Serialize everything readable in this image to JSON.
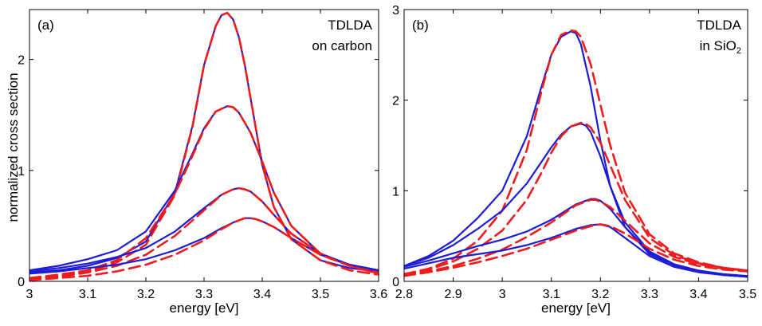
{
  "ylabel": "normalized cross section",
  "chart_data": [
    {
      "type": "line",
      "panel_label": "(a)",
      "annotation": [
        "TDLDA",
        "on carbon"
      ],
      "xlabel": "energy [eV]",
      "ylabel": "",
      "xlim": [
        3.0,
        3.6
      ],
      "ylim": [
        0,
        2.45
      ],
      "xticks": [
        "3",
        "3.1",
        "3.2",
        "3.3",
        "3.4",
        "3.5",
        "3.6"
      ],
      "yticks": [
        "0",
        "1",
        "2"
      ],
      "grid": false,
      "legend": "none",
      "series": [
        {
          "style": "solid",
          "color": "#1c1cd6",
          "x": [
            3.0,
            3.05,
            3.1,
            3.15,
            3.2,
            3.25,
            3.28,
            3.3,
            3.32,
            3.33,
            3.34,
            3.35,
            3.36,
            3.37,
            3.38,
            3.4,
            3.42,
            3.45,
            3.5,
            3.55,
            3.6
          ],
          "y": [
            0.08,
            0.1,
            0.14,
            0.21,
            0.36,
            0.8,
            1.4,
            1.95,
            2.3,
            2.4,
            2.42,
            2.36,
            2.2,
            1.95,
            1.65,
            1.05,
            0.67,
            0.38,
            0.19,
            0.12,
            0.09
          ]
        },
        {
          "style": "dashed",
          "color": "#ee1c1c",
          "x": [
            3.0,
            3.05,
            3.1,
            3.15,
            3.2,
            3.25,
            3.28,
            3.3,
            3.32,
            3.33,
            3.34,
            3.35,
            3.36,
            3.37,
            3.38,
            3.4,
            3.42,
            3.45,
            3.5,
            3.55,
            3.6
          ],
          "y": [
            0.02,
            0.05,
            0.09,
            0.17,
            0.33,
            0.78,
            1.39,
            1.95,
            2.3,
            2.4,
            2.42,
            2.36,
            2.2,
            1.95,
            1.65,
            1.05,
            0.67,
            0.38,
            0.19,
            0.1,
            0.06
          ]
        },
        {
          "style": "solid",
          "color": "#1c1cd6",
          "x": [
            3.0,
            3.05,
            3.1,
            3.15,
            3.2,
            3.25,
            3.28,
            3.3,
            3.32,
            3.34,
            3.35,
            3.36,
            3.38,
            3.4,
            3.42,
            3.45,
            3.5,
            3.55,
            3.6
          ],
          "y": [
            0.1,
            0.14,
            0.2,
            0.28,
            0.45,
            0.82,
            1.15,
            1.38,
            1.53,
            1.58,
            1.57,
            1.52,
            1.34,
            1.08,
            0.8,
            0.5,
            0.25,
            0.15,
            0.1
          ]
        },
        {
          "style": "dashed",
          "color": "#ee1c1c",
          "x": [
            3.0,
            3.05,
            3.1,
            3.15,
            3.2,
            3.25,
            3.28,
            3.3,
            3.32,
            3.34,
            3.35,
            3.36,
            3.38,
            3.4,
            3.42,
            3.45,
            3.5,
            3.55,
            3.6
          ],
          "y": [
            0.03,
            0.06,
            0.1,
            0.19,
            0.39,
            0.79,
            1.13,
            1.37,
            1.53,
            1.58,
            1.57,
            1.52,
            1.34,
            1.08,
            0.8,
            0.5,
            0.25,
            0.14,
            0.08
          ]
        },
        {
          "style": "solid",
          "color": "#1c1cd6",
          "x": [
            3.0,
            3.05,
            3.1,
            3.15,
            3.2,
            3.25,
            3.3,
            3.33,
            3.35,
            3.36,
            3.37,
            3.38,
            3.4,
            3.42,
            3.45,
            3.5,
            3.55,
            3.6
          ],
          "y": [
            0.09,
            0.12,
            0.16,
            0.22,
            0.3,
            0.45,
            0.66,
            0.78,
            0.83,
            0.84,
            0.83,
            0.81,
            0.72,
            0.6,
            0.43,
            0.25,
            0.15,
            0.1
          ]
        },
        {
          "style": "dashed",
          "color": "#ee1c1c",
          "x": [
            3.0,
            3.05,
            3.1,
            3.15,
            3.2,
            3.25,
            3.3,
            3.33,
            3.35,
            3.36,
            3.37,
            3.38,
            3.4,
            3.42,
            3.45,
            3.5,
            3.55,
            3.6
          ],
          "y": [
            0.02,
            0.04,
            0.08,
            0.14,
            0.24,
            0.41,
            0.64,
            0.78,
            0.83,
            0.84,
            0.83,
            0.81,
            0.72,
            0.6,
            0.43,
            0.25,
            0.14,
            0.07
          ]
        },
        {
          "style": "solid",
          "color": "#1c1cd6",
          "x": [
            3.0,
            3.05,
            3.1,
            3.15,
            3.2,
            3.25,
            3.3,
            3.33,
            3.35,
            3.37,
            3.38,
            3.39,
            3.4,
            3.42,
            3.45,
            3.5,
            3.55,
            3.6
          ],
          "y": [
            0.07,
            0.09,
            0.12,
            0.15,
            0.2,
            0.28,
            0.39,
            0.48,
            0.53,
            0.57,
            0.57,
            0.56,
            0.54,
            0.49,
            0.39,
            0.24,
            0.15,
            0.1
          ]
        },
        {
          "style": "dashed",
          "color": "#ee1c1c",
          "x": [
            3.0,
            3.05,
            3.1,
            3.15,
            3.2,
            3.25,
            3.3,
            3.33,
            3.35,
            3.37,
            3.38,
            3.39,
            3.4,
            3.42,
            3.45,
            3.5,
            3.55,
            3.6
          ],
          "y": [
            0.01,
            0.03,
            0.05,
            0.09,
            0.15,
            0.24,
            0.37,
            0.47,
            0.53,
            0.57,
            0.57,
            0.56,
            0.54,
            0.49,
            0.39,
            0.24,
            0.14,
            0.07
          ]
        }
      ]
    },
    {
      "type": "line",
      "panel_label": "(b)",
      "annotation": [
        "TDLDA",
        "in SiO",
        "2"
      ],
      "xlabel": "energy [eV]",
      "ylabel": "",
      "xlim": [
        2.8,
        3.5
      ],
      "ylim": [
        0,
        3
      ],
      "xticks": [
        "2.8",
        "2.9",
        "3",
        "3.1",
        "3.2",
        "3.3",
        "3.4",
        "3.5"
      ],
      "yticks": [
        "0",
        "1",
        "2",
        "3"
      ],
      "grid": false,
      "legend": "none",
      "series": [
        {
          "style": "solid",
          "color": "#1c1cd6",
          "x": [
            2.8,
            2.85,
            2.9,
            2.95,
            3.0,
            3.05,
            3.08,
            3.1,
            3.12,
            3.14,
            3.15,
            3.16,
            3.18,
            3.2,
            3.22,
            3.25,
            3.3,
            3.35,
            3.4,
            3.45,
            3.5
          ],
          "y": [
            0.17,
            0.28,
            0.45,
            0.7,
            1.0,
            1.6,
            2.15,
            2.5,
            2.7,
            2.76,
            2.74,
            2.62,
            2.15,
            1.55,
            1.05,
            0.6,
            0.3,
            0.18,
            0.11,
            0.07,
            0.05
          ]
        },
        {
          "style": "dashed",
          "color": "#ee1c1c",
          "x": [
            2.8,
            2.85,
            2.9,
            2.95,
            3.0,
            3.05,
            3.08,
            3.1,
            3.12,
            3.14,
            3.15,
            3.16,
            3.18,
            3.2,
            3.22,
            3.25,
            3.3,
            3.35,
            3.4,
            3.45,
            3.5
          ],
          "y": [
            0.08,
            0.14,
            0.25,
            0.45,
            0.78,
            1.45,
            2.1,
            2.5,
            2.72,
            2.77,
            2.76,
            2.7,
            2.4,
            1.95,
            1.5,
            0.98,
            0.52,
            0.31,
            0.21,
            0.15,
            0.12
          ]
        },
        {
          "style": "solid",
          "color": "#1c1cd6",
          "x": [
            2.8,
            2.85,
            2.9,
            2.95,
            3.0,
            3.05,
            3.08,
            3.1,
            3.12,
            3.14,
            3.16,
            3.17,
            3.18,
            3.2,
            3.22,
            3.25,
            3.3,
            3.35,
            3.4,
            3.45,
            3.5
          ],
          "y": [
            0.17,
            0.26,
            0.4,
            0.58,
            0.78,
            1.08,
            1.32,
            1.48,
            1.62,
            1.71,
            1.74,
            1.72,
            1.65,
            1.38,
            1.05,
            0.65,
            0.33,
            0.19,
            0.12,
            0.08,
            0.06
          ]
        },
        {
          "style": "dashed",
          "color": "#ee1c1c",
          "x": [
            2.8,
            2.85,
            2.9,
            2.95,
            3.0,
            3.05,
            3.08,
            3.1,
            3.12,
            3.14,
            3.16,
            3.17,
            3.18,
            3.2,
            3.22,
            3.25,
            3.3,
            3.35,
            3.4,
            3.45,
            3.5
          ],
          "y": [
            0.08,
            0.13,
            0.22,
            0.36,
            0.56,
            0.9,
            1.2,
            1.42,
            1.6,
            1.71,
            1.75,
            1.74,
            1.7,
            1.53,
            1.28,
            0.9,
            0.48,
            0.29,
            0.2,
            0.15,
            0.12
          ]
        },
        {
          "style": "solid",
          "color": "#1c1cd6",
          "x": [
            2.8,
            2.85,
            2.9,
            2.95,
            3.0,
            3.05,
            3.1,
            3.15,
            3.18,
            3.19,
            3.2,
            3.22,
            3.25,
            3.3,
            3.35,
            3.4,
            3.45,
            3.5
          ],
          "y": [
            0.16,
            0.23,
            0.31,
            0.39,
            0.46,
            0.55,
            0.68,
            0.85,
            0.91,
            0.91,
            0.89,
            0.8,
            0.6,
            0.32,
            0.18,
            0.11,
            0.07,
            0.05
          ]
        },
        {
          "style": "dashed",
          "color": "#ee1c1c",
          "x": [
            2.8,
            2.85,
            2.9,
            2.95,
            3.0,
            3.05,
            3.1,
            3.15,
            3.18,
            3.19,
            3.2,
            3.22,
            3.25,
            3.3,
            3.35,
            3.4,
            3.45,
            3.5
          ],
          "y": [
            0.07,
            0.11,
            0.17,
            0.25,
            0.35,
            0.49,
            0.65,
            0.84,
            0.9,
            0.9,
            0.88,
            0.82,
            0.67,
            0.42,
            0.27,
            0.19,
            0.14,
            0.12
          ]
        },
        {
          "style": "solid",
          "color": "#1c1cd6",
          "x": [
            2.8,
            2.85,
            2.9,
            2.95,
            3.0,
            3.05,
            3.1,
            3.15,
            3.18,
            3.2,
            3.22,
            3.25,
            3.3,
            3.35,
            3.4,
            3.45,
            3.5
          ],
          "y": [
            0.14,
            0.2,
            0.26,
            0.3,
            0.34,
            0.4,
            0.48,
            0.58,
            0.62,
            0.63,
            0.6,
            0.48,
            0.28,
            0.16,
            0.1,
            0.07,
            0.05
          ]
        },
        {
          "style": "dashed",
          "color": "#ee1c1c",
          "x": [
            2.8,
            2.85,
            2.9,
            2.95,
            3.0,
            3.05,
            3.1,
            3.15,
            3.18,
            3.2,
            3.22,
            3.25,
            3.3,
            3.35,
            3.4,
            3.45,
            3.5
          ],
          "y": [
            0.06,
            0.1,
            0.15,
            0.21,
            0.28,
            0.36,
            0.46,
            0.56,
            0.61,
            0.63,
            0.61,
            0.53,
            0.36,
            0.24,
            0.17,
            0.13,
            0.11
          ]
        }
      ]
    }
  ]
}
